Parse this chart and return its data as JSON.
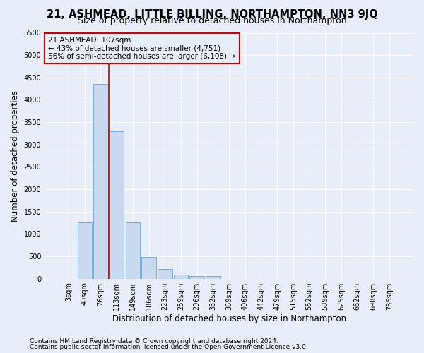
{
  "title": "21, ASHMEAD, LITTLE BILLING, NORTHAMPTON, NN3 9JQ",
  "subtitle": "Size of property relative to detached houses in Northampton",
  "xlabel": "Distribution of detached houses by size in Northampton",
  "ylabel": "Number of detached properties",
  "footnote1": "Contains HM Land Registry data © Crown copyright and database right 2024.",
  "footnote2": "Contains public sector information licensed under the Open Government Licence v3.0.",
  "categories": [
    "3sqm",
    "40sqm",
    "76sqm",
    "113sqm",
    "149sqm",
    "186sqm",
    "223sqm",
    "259sqm",
    "296sqm",
    "332sqm",
    "369sqm",
    "406sqm",
    "442sqm",
    "479sqm",
    "515sqm",
    "552sqm",
    "589sqm",
    "625sqm",
    "662sqm",
    "698sqm",
    "735sqm"
  ],
  "values": [
    0,
    1260,
    4350,
    3300,
    1260,
    480,
    215,
    85,
    60,
    55,
    0,
    0,
    0,
    0,
    0,
    0,
    0,
    0,
    0,
    0,
    0
  ],
  "bar_color": "#c9d9ef",
  "bar_edge_color": "#7aaadb",
  "vline_color": "#cc0000",
  "vline_pos": 2.5,
  "annotation_box_text": "21 ASHMEAD: 107sqm\n← 43% of detached houses are smaller (4,751)\n56% of semi-detached houses are larger (6,108) →",
  "annotation_box_color": "#cc0000",
  "ylim": [
    0,
    5500
  ],
  "yticks": [
    0,
    500,
    1000,
    1500,
    2000,
    2500,
    3000,
    3500,
    4000,
    4500,
    5000,
    5500
  ],
  "bg_color": "#e8eef8",
  "grid_color": "#ffffff",
  "title_fontsize": 10.5,
  "subtitle_fontsize": 9,
  "axis_label_fontsize": 8.5,
  "tick_fontsize": 7,
  "annotation_fontsize": 7.5,
  "footnote_fontsize": 6.5
}
